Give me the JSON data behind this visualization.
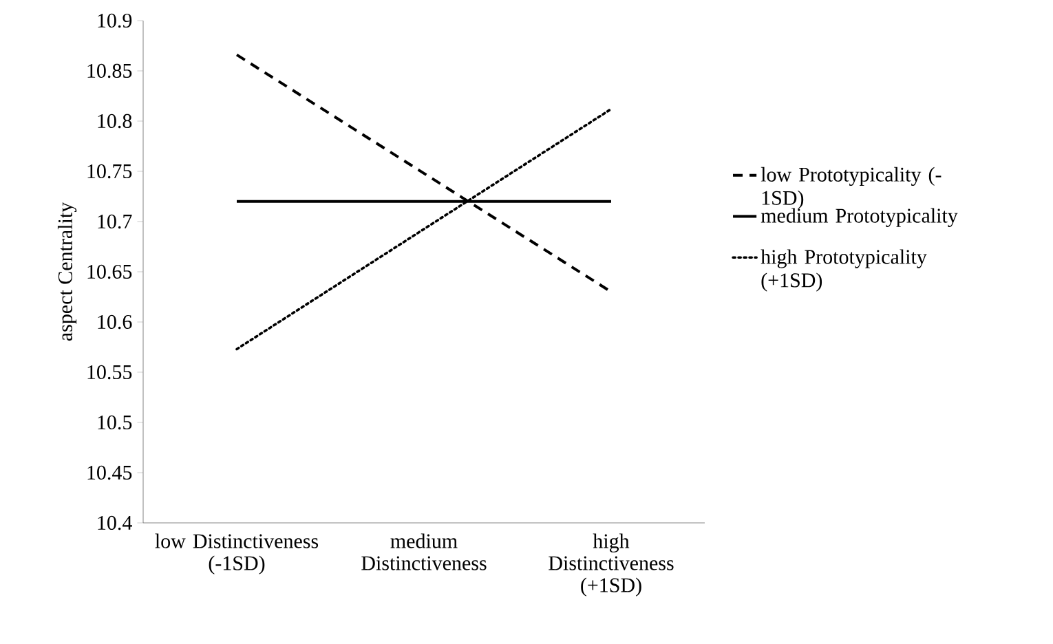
{
  "chart_data": {
    "type": "line",
    "ylabel": "aspect Centrality",
    "categories": [
      "low Distinctiveness (-1SD)",
      "medium Distinctiveness",
      "high Distinctiveness (+1SD)"
    ],
    "series": [
      {
        "name": "low Prototypicality (-1SD)",
        "color": "#000000",
        "line_style": "dashed",
        "values": [
          10.866,
          null,
          10.63
        ]
      },
      {
        "name": "medium Prototypicality",
        "color": "#000000",
        "line_style": "solid",
        "values": [
          10.72,
          null,
          10.72
        ]
      },
      {
        "name": "high Prototypicality (+1SD)",
        "color": "#000000",
        "line_style": "dotted",
        "values": [
          10.573,
          null,
          10.812
        ]
      }
    ],
    "ylim": [
      10.4,
      10.9
    ],
    "yticks": [
      10.4,
      10.45,
      10.5,
      10.55,
      10.6,
      10.65,
      10.7,
      10.75,
      10.8,
      10.85,
      10.9
    ],
    "legend": "right",
    "grid": false
  }
}
